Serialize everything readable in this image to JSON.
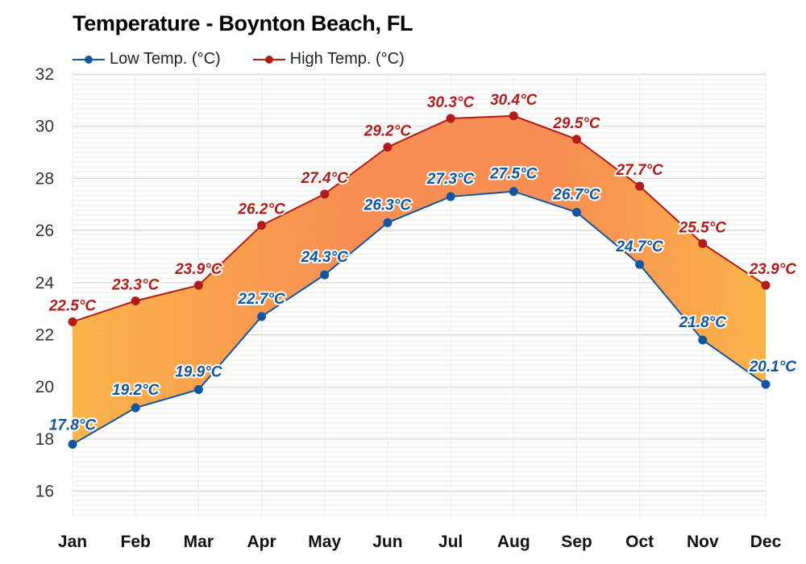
{
  "chart_data": {
    "type": "line",
    "title": "Temperature - Boynton Beach, FL",
    "categories": [
      "Jan",
      "Feb",
      "Mar",
      "Apr",
      "May",
      "Jun",
      "Jul",
      "Aug",
      "Sep",
      "Oct",
      "Nov",
      "Dec"
    ],
    "series": [
      {
        "name": "Low Temp. (°C)",
        "color": "#1155a0",
        "values": [
          17.8,
          19.2,
          19.9,
          22.7,
          24.3,
          26.3,
          27.3,
          27.5,
          26.7,
          24.7,
          21.8,
          20.1
        ],
        "labels": [
          "17.8°C",
          "19.2°C",
          "19.9°C",
          "22.7°C",
          "24.3°C",
          "26.3°C",
          "27.3°C",
          "27.5°C",
          "26.7°C",
          "24.7°C",
          "21.8°C",
          "20.1°C"
        ]
      },
      {
        "name": "High Temp. (°C)",
        "color": "#b31b1b",
        "values": [
          22.5,
          23.3,
          23.9,
          26.2,
          27.4,
          29.2,
          30.3,
          30.4,
          29.5,
          27.7,
          25.5,
          23.9
        ],
        "labels": [
          "22.5°C",
          "23.3°C",
          "23.9°C",
          "26.2°C",
          "27.4°C",
          "29.2°C",
          "30.3°C",
          "30.4°C",
          "29.5°C",
          "27.7°C",
          "25.5°C",
          "23.9°C"
        ]
      }
    ],
    "yticks": [
      "16",
      "18",
      "20",
      "22",
      "24",
      "26",
      "28",
      "30",
      "32"
    ],
    "ylim": [
      15,
      32
    ],
    "grid": true,
    "legend_position": "top-left",
    "band_colors": [
      "#fbb040",
      "#f7884a"
    ]
  }
}
